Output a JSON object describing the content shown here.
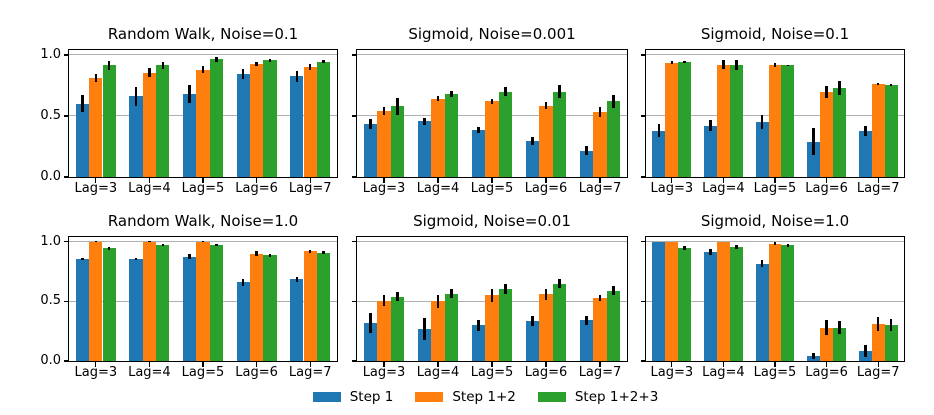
{
  "figure": {
    "background": "#ffffff",
    "text_color": "#000000",
    "grid_color": "#b0b0b0",
    "spine_color": "#000000",
    "errorbar_color": "#000000",
    "ylim": [
      0,
      1.04
    ],
    "ytick_values": [
      0.0,
      0.5,
      1.0
    ],
    "ytick_labels": [
      "0.0",
      "0.5",
      "1.0"
    ],
    "grid_values": [
      0.5,
      1.0
    ]
  },
  "legend": {
    "position": "lower-center",
    "items": [
      {
        "label": "Step 1",
        "color": "#1f77b4"
      },
      {
        "label": "Step 1+2",
        "color": "#ff7f0e"
      },
      {
        "label": "Step 1+2+3",
        "color": "#2ca02c"
      }
    ]
  },
  "chart_data": [
    {
      "type": "bar",
      "title": "Random Walk, Noise=0.1",
      "categories": [
        "Lag=3",
        "Lag=4",
        "Lag=5",
        "Lag=6",
        "Lag=7"
      ],
      "ylim": [
        0,
        1.04
      ],
      "yticks": [
        0.0,
        0.5,
        1.0
      ],
      "grid": true,
      "series": [
        {
          "name": "Step 1",
          "color": "#1f77b4",
          "values": [
            0.6,
            0.66,
            0.68,
            0.845,
            0.825
          ],
          "errors": [
            0.07,
            0.075,
            0.07,
            0.04,
            0.045
          ]
        },
        {
          "name": "Step 1+2",
          "color": "#ff7f0e",
          "values": [
            0.81,
            0.855,
            0.88,
            0.925,
            0.9
          ],
          "errors": [
            0.03,
            0.035,
            0.03,
            0.02,
            0.025
          ]
        },
        {
          "name": "Step 1+2+3",
          "color": "#2ca02c",
          "values": [
            0.915,
            0.915,
            0.965,
            0.955,
            0.945
          ],
          "errors": [
            0.035,
            0.03,
            0.02,
            0.012,
            0.012
          ]
        }
      ]
    },
    {
      "type": "bar",
      "title": "Sigmoid, Noise=0.001",
      "categories": [
        "Lag=3",
        "Lag=4",
        "Lag=5",
        "Lag=6",
        "Lag=7"
      ],
      "ylim": [
        0,
        1.04
      ],
      "yticks": [
        0.0,
        0.5,
        1.0
      ],
      "grid": true,
      "series": [
        {
          "name": "Step 1",
          "color": "#1f77b4",
          "values": [
            0.435,
            0.455,
            0.385,
            0.295,
            0.215
          ],
          "errors": [
            0.04,
            0.03,
            0.025,
            0.03,
            0.035
          ]
        },
        {
          "name": "Step 1+2",
          "color": "#ff7f0e",
          "values": [
            0.54,
            0.64,
            0.62,
            0.585,
            0.535
          ],
          "errors": [
            0.035,
            0.02,
            0.02,
            0.03,
            0.04
          ]
        },
        {
          "name": "Step 1+2+3",
          "color": "#2ca02c",
          "values": [
            0.58,
            0.68,
            0.7,
            0.7,
            0.62
          ],
          "errors": [
            0.07,
            0.022,
            0.035,
            0.05,
            0.055
          ]
        }
      ]
    },
    {
      "type": "bar",
      "title": "Sigmoid, Noise=0.1",
      "categories": [
        "Lag=3",
        "Lag=4",
        "Lag=5",
        "Lag=6",
        "Lag=7"
      ],
      "ylim": [
        0,
        1.04
      ],
      "yticks": [
        0.0,
        0.5,
        1.0
      ],
      "grid": true,
      "series": [
        {
          "name": "Step 1",
          "color": "#1f77b4",
          "values": [
            0.38,
            0.42,
            0.45,
            0.29,
            0.375
          ],
          "errors": [
            0.055,
            0.045,
            0.055,
            0.11,
            0.04
          ]
        },
        {
          "name": "Step 1+2",
          "color": "#ff7f0e",
          "values": [
            0.935,
            0.92,
            0.915,
            0.695,
            0.76
          ],
          "errors": [
            0.012,
            0.035,
            0.015,
            0.05,
            0.01
          ]
        },
        {
          "name": "Step 1+2+3",
          "color": "#2ca02c",
          "values": [
            0.94,
            0.92,
            0.915,
            0.73,
            0.755
          ],
          "errors": [
            0.01,
            0.04,
            0.004,
            0.06,
            0.008
          ]
        }
      ]
    },
    {
      "type": "bar",
      "title": "Random Walk, Noise=1.0",
      "categories": [
        "Lag=3",
        "Lag=4",
        "Lag=5",
        "Lag=6",
        "Lag=7"
      ],
      "ylim": [
        0,
        1.04
      ],
      "yticks": [
        0.0,
        0.5,
        1.0
      ],
      "grid": true,
      "series": [
        {
          "name": "Step 1",
          "color": "#1f77b4",
          "values": [
            0.855,
            0.855,
            0.875,
            0.66,
            0.685
          ],
          "errors": [
            0.005,
            0.005,
            0.02,
            0.03,
            0.02
          ]
        },
        {
          "name": "Step 1+2",
          "color": "#ff7f0e",
          "values": [
            1.0,
            1.0,
            1.0,
            0.9,
            0.92
          ],
          "errors": [
            0.004,
            0.004,
            0.004,
            0.02,
            0.015
          ]
        },
        {
          "name": "Step 1+2+3",
          "color": "#2ca02c",
          "values": [
            0.945,
            0.975,
            0.975,
            0.885,
            0.91
          ],
          "errors": [
            0.015,
            0.01,
            0.008,
            0.015,
            0.01
          ]
        }
      ]
    },
    {
      "type": "bar",
      "title": "Sigmoid, Noise=0.01",
      "categories": [
        "Lag=3",
        "Lag=4",
        "Lag=5",
        "Lag=6",
        "Lag=7"
      ],
      "ylim": [
        0,
        1.04
      ],
      "yticks": [
        0.0,
        0.5,
        1.0
      ],
      "grid": true,
      "series": [
        {
          "name": "Step 1",
          "color": "#1f77b4",
          "values": [
            0.32,
            0.27,
            0.3,
            0.335,
            0.34
          ],
          "errors": [
            0.085,
            0.09,
            0.045,
            0.04,
            0.035
          ]
        },
        {
          "name": "Step 1+2",
          "color": "#ff7f0e",
          "values": [
            0.505,
            0.5,
            0.55,
            0.56,
            0.525
          ],
          "errors": [
            0.045,
            0.055,
            0.055,
            0.045,
            0.025
          ]
        },
        {
          "name": "Step 1+2+3",
          "color": "#2ca02c",
          "values": [
            0.54,
            0.565,
            0.605,
            0.65,
            0.59
          ],
          "errors": [
            0.035,
            0.035,
            0.04,
            0.035,
            0.035
          ]
        }
      ]
    },
    {
      "type": "bar",
      "title": "Sigmoid, Noise=1.0",
      "categories": [
        "Lag=3",
        "Lag=4",
        "Lag=5",
        "Lag=6",
        "Lag=7"
      ],
      "ylim": [
        0,
        1.04
      ],
      "yticks": [
        0.0,
        0.5,
        1.0
      ],
      "grid": true,
      "series": [
        {
          "name": "Step 1",
          "color": "#1f77b4",
          "values": [
            1.0,
            0.915,
            0.815,
            0.04,
            0.085
          ],
          "errors": [
            0,
            0.025,
            0.03,
            0.025,
            0.05
          ]
        },
        {
          "name": "Step 1+2",
          "color": "#ff7f0e",
          "values": [
            1.0,
            1.0,
            0.985,
            0.28,
            0.31
          ],
          "errors": [
            0,
            0,
            0.01,
            0.06,
            0.06
          ]
        },
        {
          "name": "Step 1+2+3",
          "color": "#2ca02c",
          "values": [
            0.95,
            0.955,
            0.97,
            0.28,
            0.305
          ],
          "errors": [
            0.015,
            0.015,
            0.01,
            0.055,
            0.05
          ]
        }
      ]
    }
  ]
}
